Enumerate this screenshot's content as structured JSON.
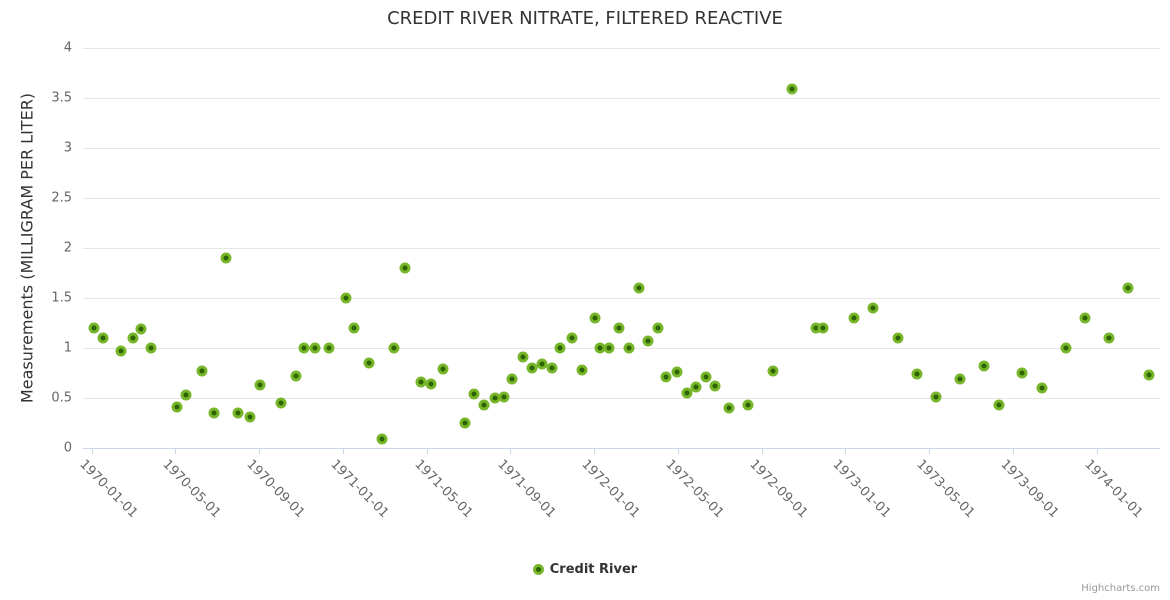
{
  "title": "CREDIT RIVER NITRATE, FILTERED REACTIVE",
  "y_axis_title": "Measurements (MILLIGRAM PER LITER)",
  "legend": {
    "label": "Credit River"
  },
  "credits": {
    "label": "Highcharts.com"
  },
  "colors": {
    "marker_fill": "#2d6302",
    "marker_ring": "#77b62a",
    "gridline": "#e6e6e6",
    "axis": "#ccd6eb",
    "title_text": "#333333",
    "label_text": "#666666",
    "credits_text": "#999999"
  },
  "chart_data": {
    "type": "scatter",
    "title": "CREDIT RIVER NITRATE, FILTERED REACTIVE",
    "xlabel": "",
    "ylabel": "Measurements (MILLIGRAM PER LITER)",
    "ylim": [
      0,
      4
    ],
    "ytick_step": 0.5,
    "grid": "horizontal-only",
    "legend_position": "bottom-center",
    "xticks": [
      "1970-01-01",
      "1970-05-01",
      "1970-09-01",
      "1971-01-01",
      "1971-05-01",
      "1971-09-01",
      "1972-01-01",
      "1972-05-01",
      "1972-09-01",
      "1973-01-01",
      "1973-05-01",
      "1973-09-01",
      "1974-01-01"
    ],
    "series": [
      {
        "name": "Credit River",
        "points": [
          [
            "1970-01-05",
            1.2
          ],
          [
            "1970-01-17",
            1.1
          ],
          [
            "1970-02-14",
            0.97
          ],
          [
            "1970-03-01",
            1.1
          ],
          [
            "1970-03-12",
            1.19
          ],
          [
            "1970-03-26",
            1.0
          ],
          [
            "1970-05-04",
            0.41
          ],
          [
            "1970-05-17",
            0.53
          ],
          [
            "1970-06-09",
            0.77
          ],
          [
            "1970-06-27",
            0.35
          ],
          [
            "1970-07-14",
            1.9
          ],
          [
            "1970-08-01",
            0.35
          ],
          [
            "1970-08-19",
            0.31
          ],
          [
            "1970-09-02",
            0.63
          ],
          [
            "1970-10-03",
            0.45
          ],
          [
            "1970-10-24",
            0.72
          ],
          [
            "1970-11-06",
            1.0
          ],
          [
            "1970-11-22",
            1.0
          ],
          [
            "1970-12-12",
            1.0
          ],
          [
            "1971-01-06",
            1.5
          ],
          [
            "1971-01-18",
            1.2
          ],
          [
            "1971-02-09",
            0.85
          ],
          [
            "1971-02-28",
            0.09
          ],
          [
            "1971-03-14",
            1.0
          ],
          [
            "1971-03-30",
            1.8
          ],
          [
            "1971-04-24",
            0.66
          ],
          [
            "1971-05-08",
            0.64
          ],
          [
            "1971-05-25",
            0.79
          ],
          [
            "1971-06-26",
            0.25
          ],
          [
            "1971-07-09",
            0.54
          ],
          [
            "1971-07-24",
            0.43
          ],
          [
            "1971-08-09",
            0.5
          ],
          [
            "1971-08-22",
            0.51
          ],
          [
            "1971-09-04",
            0.69
          ],
          [
            "1971-09-19",
            0.91
          ],
          [
            "1971-10-02",
            0.8
          ],
          [
            "1971-10-16",
            0.84
          ],
          [
            "1971-10-31",
            0.8
          ],
          [
            "1971-11-13",
            1.0
          ],
          [
            "1971-11-30",
            1.1
          ],
          [
            "1971-12-14",
            0.78
          ],
          [
            "1972-01-03",
            1.3
          ],
          [
            "1972-01-10",
            1.0
          ],
          [
            "1972-01-23",
            1.0
          ],
          [
            "1972-02-07",
            1.2
          ],
          [
            "1972-02-21",
            1.0
          ],
          [
            "1972-03-05",
            1.6
          ],
          [
            "1972-03-19",
            1.07
          ],
          [
            "1972-04-02",
            1.2
          ],
          [
            "1972-04-15",
            0.71
          ],
          [
            "1972-04-30",
            0.76
          ],
          [
            "1972-05-14",
            0.55
          ],
          [
            "1972-05-28",
            0.61
          ],
          [
            "1972-06-11",
            0.71
          ],
          [
            "1972-06-25",
            0.62
          ],
          [
            "1972-07-15",
            0.4
          ],
          [
            "1972-08-12",
            0.43
          ],
          [
            "1972-09-18",
            0.77
          ],
          [
            "1972-10-15",
            3.59
          ],
          [
            "1972-11-20",
            1.2
          ],
          [
            "1972-11-30",
            1.2
          ],
          [
            "1973-01-14",
            1.3
          ],
          [
            "1973-02-11",
            1.4
          ],
          [
            "1973-03-17",
            1.1
          ],
          [
            "1973-04-14",
            0.74
          ],
          [
            "1973-05-11",
            0.51
          ],
          [
            "1973-06-16",
            0.69
          ],
          [
            "1973-07-20",
            0.82
          ],
          [
            "1973-08-12",
            0.43
          ],
          [
            "1973-09-15",
            0.75
          ],
          [
            "1973-10-13",
            0.6
          ],
          [
            "1973-11-18",
            1.0
          ],
          [
            "1973-12-15",
            1.3
          ],
          [
            "1974-01-19",
            1.1
          ],
          [
            "1974-02-16",
            1.6
          ],
          [
            "1974-03-16",
            0.73
          ]
        ]
      }
    ]
  }
}
